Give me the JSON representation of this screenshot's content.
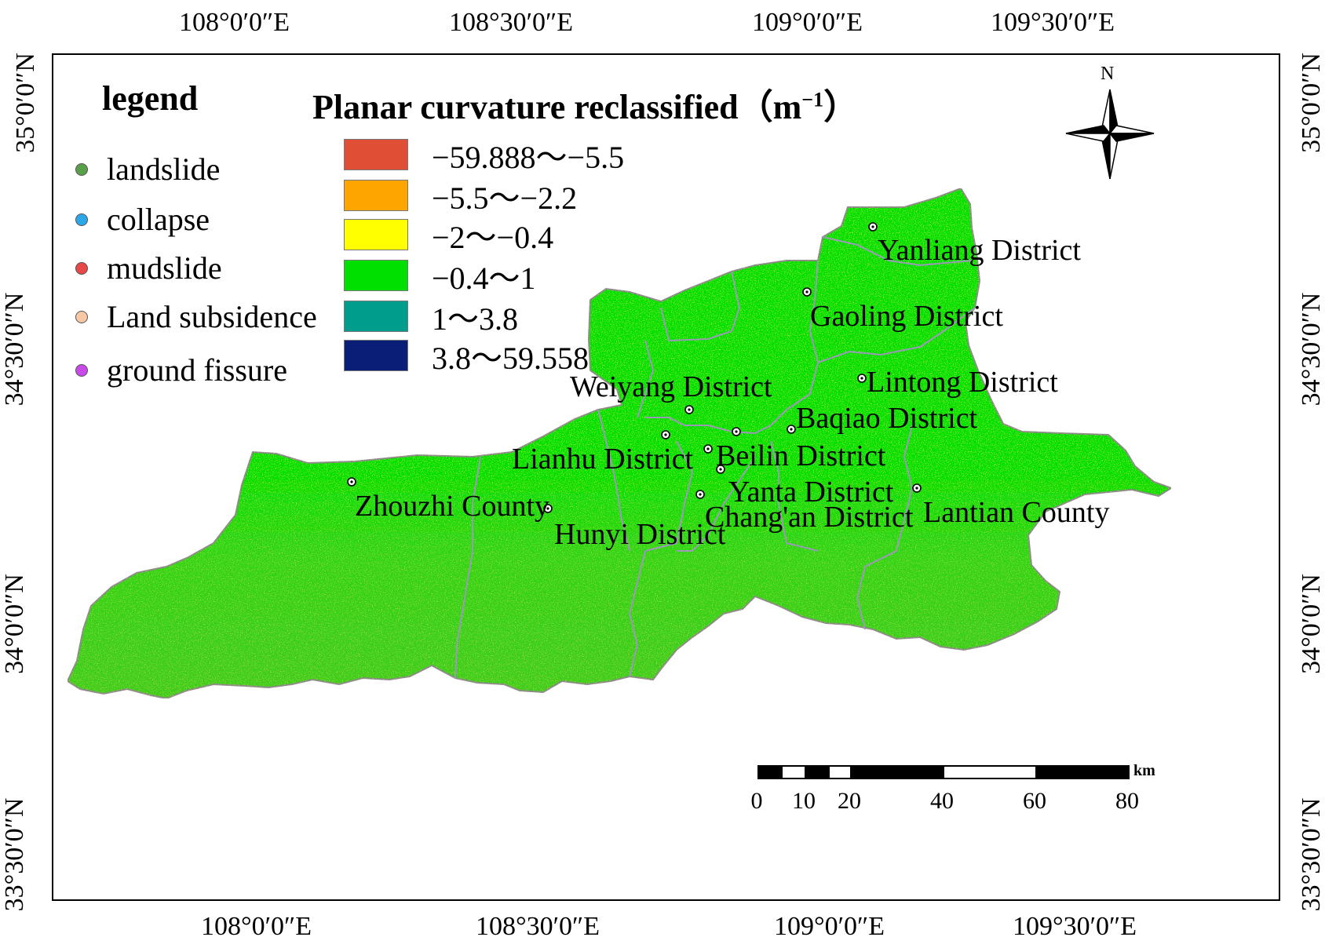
{
  "map": {
    "top_lon_labels": [
      "108°0′0″E",
      "108°30′0″E",
      "109°0′0″E",
      "109°30′0″E"
    ],
    "bottom_lon_labels": [
      "108°0′0″E",
      "108°30′0″E",
      "109°0′0″E",
      "109°30′0″E"
    ],
    "left_lat_labels": [
      "35°0′0″N",
      "34°30′0″N",
      "34°0′0″N",
      "33°30′0″N"
    ],
    "right_lat_labels": [
      "35°0′0″N",
      "34°30′0″N",
      "34°0′0″N",
      "33°30′0″N"
    ]
  },
  "legend": {
    "title": "legend",
    "points": [
      {
        "label": "landslide",
        "color": "#5aa04a"
      },
      {
        "label": "collapse",
        "color": "#2ca8e8"
      },
      {
        "label": "mudslide",
        "color": "#e84848"
      },
      {
        "label": "Land subsidence",
        "color": "#f7c8a4"
      },
      {
        "label": "ground fissure",
        "color": "#c84ae8"
      }
    ]
  },
  "classification": {
    "title": "Planar curvature reclassified（m",
    "title_sup": "−1",
    "title_end": "）",
    "classes": [
      {
        "label": "−59.888～−5.5",
        "color": "#e04e36"
      },
      {
        "label": "−5.5～−2.2",
        "color": "#ffa500"
      },
      {
        "label": "−2～−0.4",
        "color": "#ffff00"
      },
      {
        "label": "−0.4～1",
        "color": "#00e000"
      },
      {
        "label": "1～3.8",
        "color": "#009c8c"
      },
      {
        "label": "3.8～59.558",
        "color": "#0a1e78"
      }
    ]
  },
  "districts": [
    "Yanliang District",
    "Gaoling District",
    "Weiyang District",
    "Lintong District",
    "Baqiao District",
    "Lianhu District",
    "Beilin District",
    "Yanta District",
    "Zhouzhi County",
    "Chang'an District",
    "Lantian County",
    "Hunyi District"
  ],
  "north_arrow": {
    "label": "N"
  },
  "scale_bar": {
    "unit": "km",
    "ticks": [
      "0",
      "10",
      "20",
      "40",
      "60",
      "80"
    ]
  }
}
